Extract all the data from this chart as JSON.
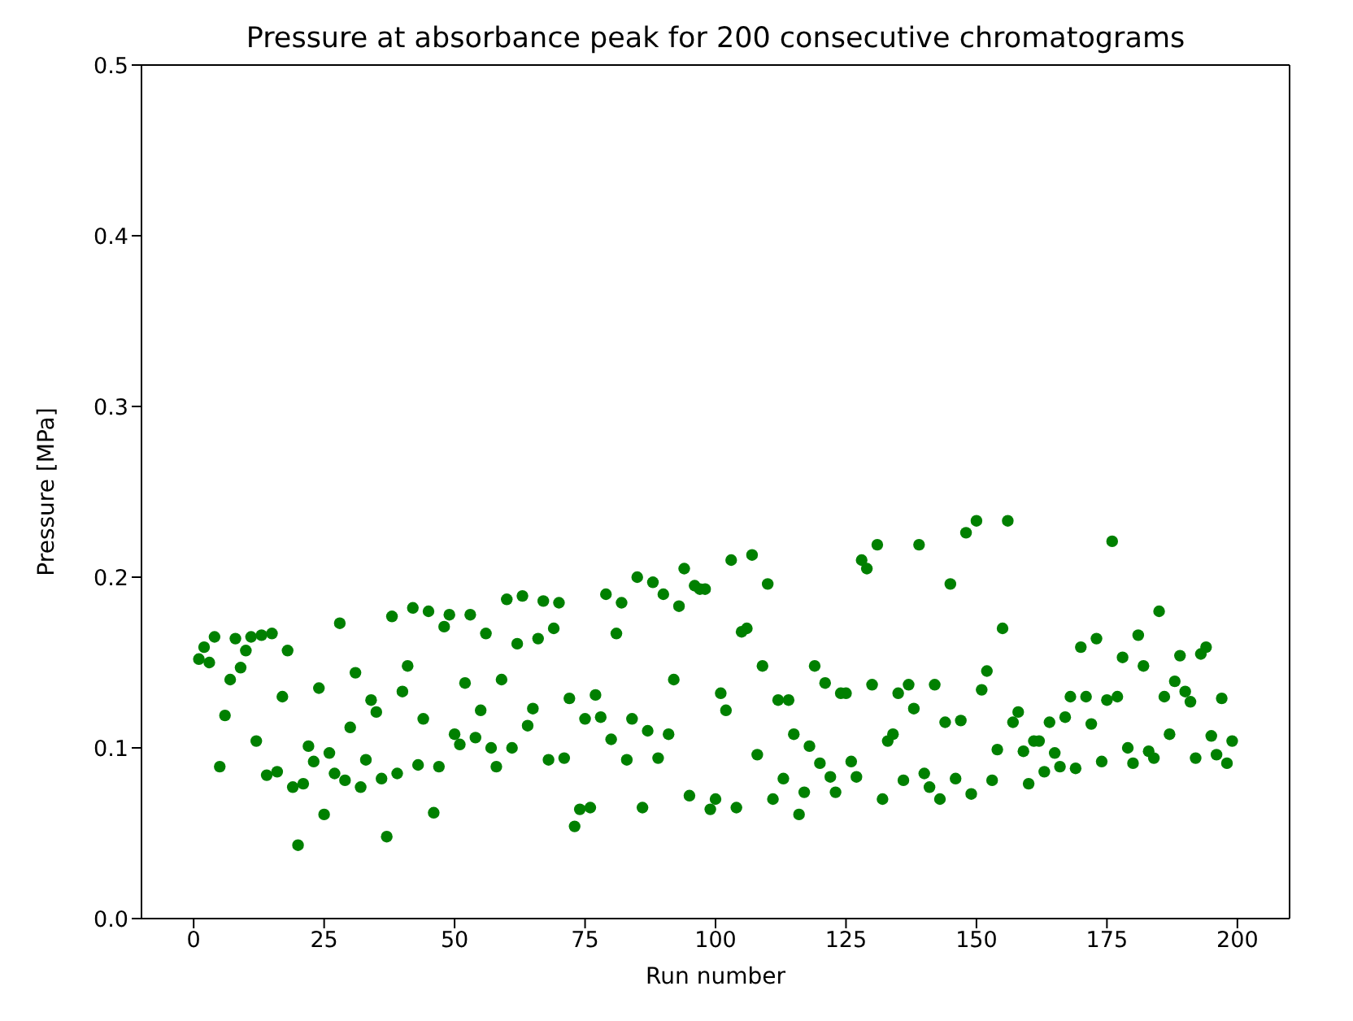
{
  "chart_data": {
    "type": "scatter",
    "title": "Pressure at absorbance peak for 200 consecutive chromatograms",
    "xlabel": "Run number",
    "ylabel": "Pressure [MPa]",
    "x": [
      1,
      2,
      3,
      4,
      5,
      6,
      7,
      8,
      9,
      10,
      11,
      12,
      13,
      14,
      15,
      16,
      17,
      18,
      19,
      20,
      21,
      22,
      23,
      24,
      25,
      26,
      27,
      28,
      29,
      30,
      31,
      32,
      33,
      34,
      35,
      36,
      37,
      38,
      39,
      40,
      41,
      42,
      43,
      44,
      45,
      46,
      47,
      48,
      49,
      50,
      51,
      52,
      53,
      54,
      55,
      56,
      57,
      58,
      59,
      60,
      61,
      62,
      63,
      64,
      65,
      66,
      67,
      68,
      69,
      70,
      71,
      72,
      73,
      74,
      75,
      76,
      77,
      78,
      79,
      80,
      81,
      82,
      83,
      84,
      85,
      86,
      87,
      88,
      89,
      90,
      91,
      92,
      93,
      94,
      95,
      96,
      97,
      98,
      99,
      100,
      101,
      102,
      103,
      104,
      105,
      106,
      107,
      108,
      109,
      110,
      111,
      112,
      113,
      114,
      115,
      116,
      117,
      118,
      119,
      120,
      121,
      122,
      123,
      124,
      125,
      126,
      127,
      128,
      129,
      130,
      131,
      132,
      133,
      134,
      135,
      136,
      137,
      138,
      139,
      140,
      141,
      142,
      143,
      144,
      145,
      146,
      147,
      148,
      149,
      150,
      151,
      152,
      153,
      154,
      155,
      156,
      157,
      158,
      159,
      160,
      161,
      162,
      163,
      164,
      165,
      166,
      167,
      168,
      169,
      170,
      171,
      172,
      173,
      174,
      175,
      176,
      177,
      178,
      179,
      180,
      181,
      182,
      183,
      184,
      185,
      186,
      187,
      188,
      189,
      190,
      191,
      192,
      193,
      194,
      195,
      196,
      197,
      198,
      199
    ],
    "series": [
      {
        "color": "#008000",
        "values": [
          0.152,
          0.159,
          0.15,
          0.165,
          0.089,
          0.119,
          0.14,
          0.164,
          0.147,
          0.157,
          0.165,
          0.104,
          0.166,
          0.084,
          0.167,
          0.086,
          0.13,
          0.157,
          0.077,
          0.043,
          0.079,
          0.101,
          0.092,
          0.135,
          0.061,
          0.097,
          0.085,
          0.173,
          0.081,
          0.112,
          0.144,
          0.077,
          0.093,
          0.128,
          0.121,
          0.082,
          0.048,
          0.177,
          0.085,
          0.133,
          0.148,
          0.182,
          0.09,
          0.117,
          0.18,
          0.062,
          0.089,
          0.171,
          0.178,
          0.108,
          0.102,
          0.138,
          0.178,
          0.106,
          0.122,
          0.167,
          0.1,
          0.089,
          0.14,
          0.187,
          0.1,
          0.161,
          0.189,
          0.113,
          0.123,
          0.164,
          0.186,
          0.093,
          0.17,
          0.185,
          0.094,
          0.129,
          0.054,
          0.064,
          0.117,
          0.065,
          0.131,
          0.118,
          0.19,
          0.105,
          0.167,
          0.185,
          0.093,
          0.117,
          0.2,
          0.065,
          0.11,
          0.197,
          0.094,
          0.19,
          0.108,
          0.14,
          0.183,
          0.205,
          0.072,
          0.195,
          0.193,
          0.193,
          0.064,
          0.07,
          0.132,
          0.122,
          0.21,
          0.065,
          0.168,
          0.17,
          0.213,
          0.096,
          0.148,
          0.196,
          0.07,
          0.128,
          0.082,
          0.128,
          0.108,
          0.061,
          0.074,
          0.101,
          0.148,
          0.091,
          0.138,
          0.083,
          0.074,
          0.132,
          0.132,
          0.092,
          0.083,
          0.21,
          0.205,
          0.137,
          0.219,
          0.07,
          0.104,
          0.108,
          0.132,
          0.081,
          0.137,
          0.123,
          0.219,
          0.085,
          0.077,
          0.137,
          0.07,
          0.115,
          0.196,
          0.082,
          0.116,
          0.226,
          0.073,
          0.233,
          0.134,
          0.145,
          0.081,
          0.099,
          0.17,
          0.233,
          0.115,
          0.121,
          0.098,
          0.079,
          0.104,
          0.104,
          0.086,
          0.115,
          0.097,
          0.089,
          0.118,
          0.13,
          0.088,
          0.159,
          0.13,
          0.114,
          0.164,
          0.092,
          0.128,
          0.221,
          0.13,
          0.153,
          0.1,
          0.091,
          0.166,
          0.148,
          0.098,
          0.094,
          0.18,
          0.13,
          0.108,
          0.139,
          0.154,
          0.133,
          0.127,
          0.094,
          0.155,
          0.159,
          0.107,
          0.096,
          0.129,
          0.091,
          0.104
        ]
      }
    ],
    "xlim": [
      -10,
      210
    ],
    "xticks": [
      0,
      25,
      50,
      75,
      100,
      125,
      150,
      175,
      200
    ],
    "ylim": [
      0,
      0.5
    ],
    "yticks": [
      {
        "value": 0,
        "label": "0.0"
      },
      {
        "value": 0.1,
        "label": "0.1"
      },
      {
        "value": 0.2,
        "label": "0.2"
      },
      {
        "value": 0.3,
        "label": "0.3"
      },
      {
        "value": 0.4,
        "label": "0.4"
      },
      {
        "value": 0.5,
        "label": "0.5"
      }
    ],
    "grid": false,
    "legend": false,
    "marker": "circle"
  }
}
